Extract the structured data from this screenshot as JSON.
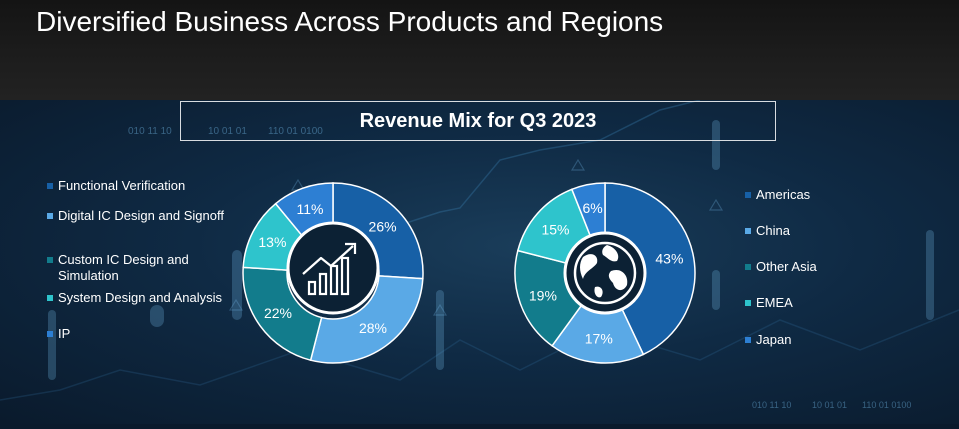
{
  "title": "Diversified Business Across Products and Regions",
  "subtitle": "Revenue Mix for Q3 2023",
  "background_digits": [
    "010 11 10",
    "10 01 01",
    "110 01 0100"
  ],
  "chart_data": [
    {
      "type": "pie",
      "variant": "donut",
      "center_icon": "growth-chart-icon",
      "categories": [
        "Functional Verification",
        "Digital IC Design and Signoff",
        "Custom IC Design and Simulation",
        "System Design and Analysis",
        "IP"
      ],
      "values": [
        26,
        28,
        22,
        13,
        11
      ],
      "labels": [
        "26%",
        "28%",
        "22%",
        "13%",
        "11%"
      ],
      "colors": [
        "#1760a6",
        "#5aa9e6",
        "#127c8c",
        "#2ec4cc",
        "#2d7fd3"
      ],
      "legend": "left"
    },
    {
      "type": "pie",
      "variant": "donut",
      "center_icon": "globe-icon",
      "categories": [
        "Americas",
        "China",
        "Other Asia",
        "EMEA",
        "Japan"
      ],
      "values": [
        43,
        17,
        19,
        15,
        6
      ],
      "labels": [
        "43%",
        "17%",
        "19%",
        "15%",
        "6%"
      ],
      "colors": [
        "#1760a6",
        "#5aa9e6",
        "#127c8c",
        "#2ec4cc",
        "#2d7fd3"
      ],
      "legend": "right"
    }
  ]
}
